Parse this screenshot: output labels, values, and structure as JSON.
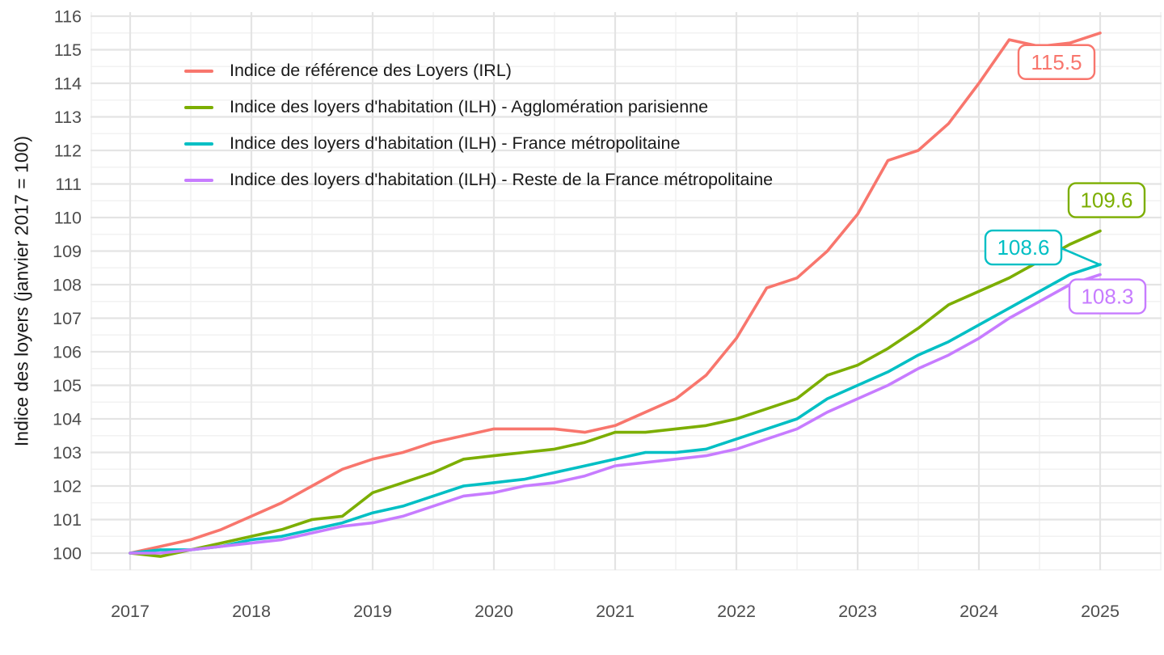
{
  "figure": {
    "y_axis_title": "Indice des loyers (janvier 2017 = 100)"
  },
  "chart_data": {
    "type": "line",
    "title": "",
    "xlabel": "",
    "ylabel": "Indice des loyers (janvier 2017 = 100)",
    "x_start": 2017,
    "x_step": 0.25,
    "x_ticks": [
      2017,
      2018,
      2019,
      2020,
      2021,
      2022,
      2023,
      2024,
      2025
    ],
    "y_ticks": [
      100,
      101,
      102,
      103,
      104,
      105,
      106,
      107,
      108,
      109,
      110,
      111,
      112,
      113,
      114,
      115,
      116
    ],
    "xlim": [
      2016.67,
      2025.5
    ],
    "ylim": [
      99.5,
      116.2
    ],
    "grid": "major+minor",
    "legend_position": "inside-top-left",
    "axis_text_color": "#4d4d4d",
    "grid_major_color": "#e4e4e4",
    "grid_minor_color": "#f2f2f2",
    "series": [
      {
        "name": "Indice de référence des Loyers (IRL)",
        "color": "#F8766D",
        "end_label": "115.5",
        "label_offset": [
          -54,
          36
        ],
        "leader": false,
        "values": [
          100,
          100.2,
          100.4,
          100.7,
          101.1,
          101.5,
          102,
          102.5,
          102.8,
          103,
          103.3,
          103.5,
          103.7,
          103.7,
          103.7,
          103.6,
          103.8,
          104.2,
          104.6,
          105.3,
          106.4,
          107.9,
          108.2,
          109,
          110.1,
          111.7,
          112,
          112.8,
          114,
          115.3,
          115.1,
          115.2,
          115.5
        ]
      },
      {
        "name": "Indice des loyers d'habitation (ILH) - Agglomération parisienne",
        "color": "#7CAE00",
        "end_label": "109.6",
        "label_offset": [
          8,
          -38
        ],
        "leader": false,
        "values": [
          100,
          99.9,
          100.1,
          100.3,
          100.5,
          100.7,
          101,
          101.1,
          101.8,
          102.1,
          102.4,
          102.8,
          102.9,
          103,
          103.1,
          103.3,
          103.6,
          103.6,
          103.7,
          103.8,
          104,
          104.3,
          104.6,
          105.3,
          105.6,
          106.1,
          106.7,
          107.4,
          107.8,
          108.2,
          108.7,
          109.2,
          109.6
        ]
      },
      {
        "name": "Indice des loyers d'habitation (ILH) - France métropolitaine",
        "color": "#00BFC4",
        "end_label": "108.6",
        "label_offset": [
          -95,
          -21
        ],
        "leader": true,
        "values": [
          100,
          100.1,
          100.1,
          100.2,
          100.4,
          100.5,
          100.7,
          100.9,
          101.2,
          101.4,
          101.7,
          102,
          102.1,
          102.2,
          102.4,
          102.6,
          102.8,
          103,
          103,
          103.1,
          103.4,
          103.7,
          104,
          104.6,
          105,
          105.4,
          105.9,
          106.3,
          106.8,
          107.3,
          107.8,
          108.3,
          108.6
        ]
      },
      {
        "name": "Indice des loyers d'habitation (ILH) - Reste de la France métropolitaine",
        "color": "#C77CFF",
        "end_label": "108.3",
        "label_offset": [
          9,
          27
        ],
        "leader": false,
        "values": [
          100,
          100,
          100.1,
          100.2,
          100.3,
          100.4,
          100.6,
          100.8,
          100.9,
          101.1,
          101.4,
          101.7,
          101.8,
          102,
          102.1,
          102.3,
          102.6,
          102.7,
          102.8,
          102.9,
          103.1,
          103.4,
          103.7,
          104.2,
          104.6,
          105,
          105.5,
          105.9,
          106.4,
          107,
          107.5,
          108,
          108.3
        ]
      }
    ]
  }
}
